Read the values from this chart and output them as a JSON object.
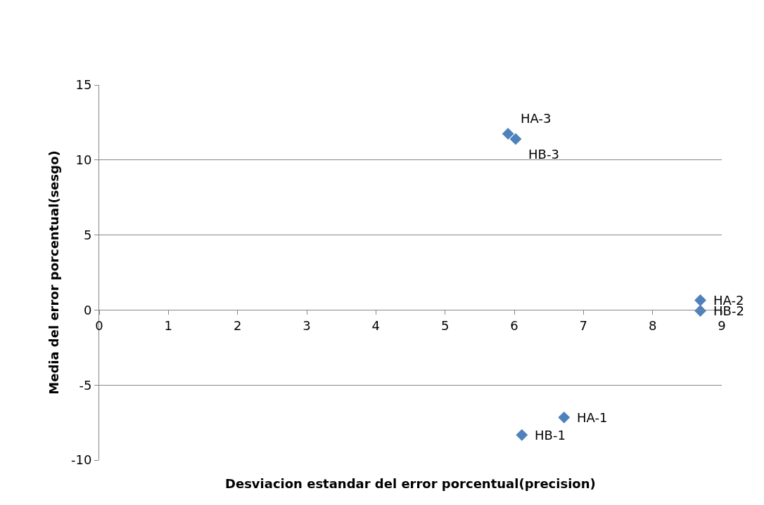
{
  "chart_data": {
    "type": "scatter",
    "xlabel": "Desviacion estandar del error porcentual(precision)",
    "ylabel": "Media del error porcentual(sesgo)",
    "x": [
      5.91,
      6.02,
      8.69,
      8.69,
      6.72,
      6.11
    ],
    "series": [
      {
        "color": "#4f81bd",
        "values": [
          11.75,
          11.4,
          0.65,
          -0.05,
          -7.16,
          -8.33
        ]
      }
    ],
    "annotations": [
      {
        "text": "HA-3",
        "x": 5.91,
        "y": 11.75
      },
      {
        "text": "HB-3",
        "x": 6.02,
        "y": 11.4
      },
      {
        "text": "HA-2",
        "x": 8.69,
        "y": 0.65
      },
      {
        "text": "HB-2",
        "x": 8.69,
        "y": -0.05
      },
      {
        "text": "HA-1",
        "x": 6.72,
        "y": -7.16
      },
      {
        "text": "HB-1",
        "x": 6.11,
        "y": -8.33
      }
    ],
    "xlim": [
      0,
      9
    ],
    "xticks": [
      0,
      1,
      2,
      3,
      4,
      5,
      6,
      7,
      8,
      9
    ],
    "ylim": [
      -10,
      15
    ],
    "yticks": [
      -10,
      -5,
      0,
      5,
      10,
      15
    ],
    "grid": "y",
    "marker": "diamond"
  }
}
